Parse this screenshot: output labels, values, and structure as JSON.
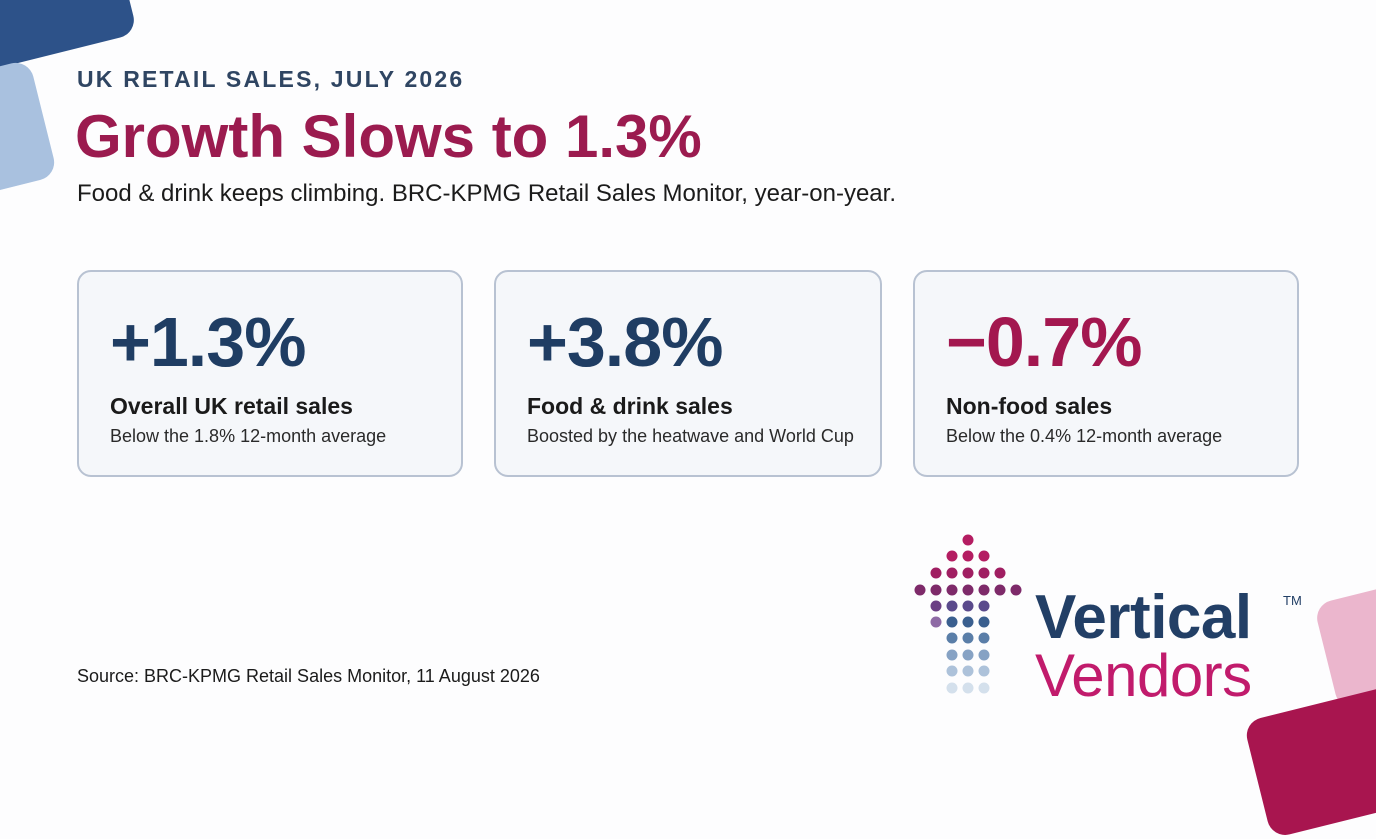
{
  "header": {
    "eyebrow": "UK RETAIL SALES, JULY 2026",
    "title": "Growth Slows to 1.3%",
    "subtitle": "Food & drink keeps climbing. BRC-KPMG Retail Sales Monitor, year-on-year."
  },
  "cards": [
    {
      "value": "+1.3%",
      "label": "Overall UK retail sales",
      "note": "Below the 1.8% 12-month average",
      "color": "#1f3d63"
    },
    {
      "value": "+3.8%",
      "label": "Food & drink sales",
      "note": "Boosted by the heatwave and World Cup",
      "color": "#1f3d63"
    },
    {
      "value": "−0.7%",
      "label": "Non-food sales",
      "note": "Below the 0.4% 12-month average",
      "color": "#a3174f"
    }
  ],
  "footer": {
    "source": "Source: BRC-KPMG Retail Sales Monitor, 11 August 2026"
  },
  "brand": {
    "line1": "Vertical",
    "line2": "Vendors",
    "tm": "TM",
    "primary_color": "#223f66",
    "accent_color": "#c11b6c"
  }
}
